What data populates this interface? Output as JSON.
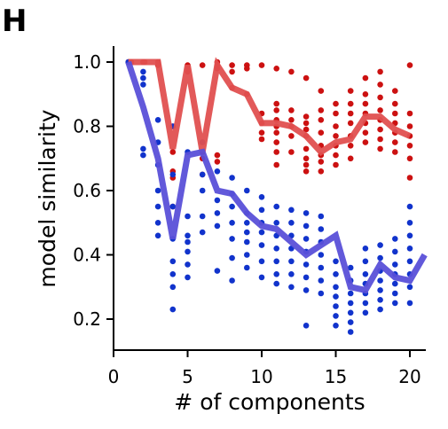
{
  "panel_label": "H",
  "chart_data": {
    "type": "scatter",
    "title": "",
    "xlabel": "# of components",
    "ylabel": "model similarity",
    "xlim": [
      0,
      21
    ],
    "ylim": [
      0.1,
      1.05
    ],
    "xticks": [
      0,
      5,
      10,
      15,
      20
    ],
    "yticks": [
      0.2,
      0.4,
      0.6,
      0.8,
      1.0
    ],
    "ytick_labels": [
      "0.2",
      "0.4",
      "0.6",
      "0.8",
      "1.0"
    ],
    "grid": false,
    "legend": "none",
    "series": [
      {
        "color": "#cc1111",
        "line_color": "#e05050",
        "mean_line": [
          [
            1,
            1.0
          ],
          [
            2,
            1.0
          ],
          [
            3,
            1.0
          ],
          [
            4,
            0.73
          ],
          [
            5,
            0.99
          ],
          [
            6,
            0.72
          ],
          [
            7,
            0.99
          ],
          [
            8,
            0.92
          ],
          [
            9,
            0.9
          ],
          [
            10,
            0.81
          ],
          [
            11,
            0.81
          ],
          [
            12,
            0.8
          ],
          [
            13,
            0.77
          ],
          [
            14,
            0.72
          ],
          [
            15,
            0.75
          ],
          [
            16,
            0.76
          ],
          [
            17,
            0.83
          ],
          [
            18,
            0.83
          ],
          [
            19,
            0.79
          ],
          [
            20,
            0.77
          ]
        ],
        "points": [
          [
            1,
            1.0
          ],
          [
            1.2,
            1.0
          ],
          [
            2,
            1.0
          ],
          [
            2.1,
            1.0
          ],
          [
            3,
            1.0
          ],
          [
            3,
            0.99
          ],
          [
            4,
            0.8
          ],
          [
            4,
            0.72
          ],
          [
            4,
            0.66
          ],
          [
            4,
            0.64
          ],
          [
            4,
            0.55
          ],
          [
            5,
            0.99
          ],
          [
            5,
            0.98
          ],
          [
            5,
            0.97
          ],
          [
            6,
            0.99
          ],
          [
            6,
            0.75
          ],
          [
            6,
            0.72
          ],
          [
            6,
            0.7
          ],
          [
            6,
            0.65
          ],
          [
            7,
            1.0
          ],
          [
            7,
            0.99
          ],
          [
            7,
            0.98
          ],
          [
            7,
            0.71
          ],
          [
            7,
            0.69
          ],
          [
            8,
            0.99
          ],
          [
            8,
            0.97
          ],
          [
            8,
            0.92
          ],
          [
            9,
            0.99
          ],
          [
            9,
            0.98
          ],
          [
            9,
            0.9
          ],
          [
            10,
            0.99
          ],
          [
            10,
            0.84
          ],
          [
            10,
            0.81
          ],
          [
            10,
            0.78
          ],
          [
            10,
            0.76
          ],
          [
            11,
            0.98
          ],
          [
            11,
            0.87
          ],
          [
            11,
            0.85
          ],
          [
            11,
            0.82
          ],
          [
            11,
            0.8
          ],
          [
            11,
            0.78
          ],
          [
            11,
            0.75
          ],
          [
            11,
            0.72
          ],
          [
            11,
            0.68
          ],
          [
            12,
            0.97
          ],
          [
            12,
            0.85
          ],
          [
            12,
            0.82
          ],
          [
            12,
            0.8
          ],
          [
            12,
            0.77
          ],
          [
            12,
            0.72
          ],
          [
            13,
            0.95
          ],
          [
            13,
            0.83
          ],
          [
            13,
            0.81
          ],
          [
            13,
            0.79
          ],
          [
            13,
            0.77
          ],
          [
            13,
            0.73
          ],
          [
            13,
            0.7
          ],
          [
            13,
            0.68
          ],
          [
            13,
            0.66
          ],
          [
            14,
            0.91
          ],
          [
            14,
            0.85
          ],
          [
            14,
            0.82
          ],
          [
            14,
            0.78
          ],
          [
            14,
            0.74
          ],
          [
            14,
            0.71
          ],
          [
            14,
            0.69
          ],
          [
            14,
            0.66
          ],
          [
            15,
            0.87
          ],
          [
            15,
            0.84
          ],
          [
            15,
            0.8
          ],
          [
            15,
            0.77
          ],
          [
            15,
            0.74
          ],
          [
            15,
            0.71
          ],
          [
            15,
            0.68
          ],
          [
            16,
            0.91
          ],
          [
            16,
            0.87
          ],
          [
            16,
            0.84
          ],
          [
            16,
            0.81
          ],
          [
            16,
            0.77
          ],
          [
            16,
            0.74
          ],
          [
            16,
            0.7
          ],
          [
            17,
            0.95
          ],
          [
            17,
            0.9
          ],
          [
            17,
            0.87
          ],
          [
            17,
            0.84
          ],
          [
            17,
            0.81
          ],
          [
            17,
            0.78
          ],
          [
            17,
            0.75
          ],
          [
            18,
            0.97
          ],
          [
            18,
            0.93
          ],
          [
            18,
            0.89
          ],
          [
            18,
            0.85
          ],
          [
            18,
            0.82
          ],
          [
            18,
            0.79
          ],
          [
            18,
            0.76
          ],
          [
            18,
            0.73
          ],
          [
            19,
            0.91
          ],
          [
            19,
            0.87
          ],
          [
            19,
            0.84
          ],
          [
            19,
            0.81
          ],
          [
            19,
            0.78
          ],
          [
            19,
            0.75
          ],
          [
            19,
            0.72
          ],
          [
            20,
            0.99
          ],
          [
            20,
            0.84
          ],
          [
            20,
            0.8
          ],
          [
            20,
            0.77
          ],
          [
            20,
            0.74
          ],
          [
            20,
            0.7
          ],
          [
            20,
            0.64
          ]
        ]
      },
      {
        "color": "#1133cc",
        "line_color": "#5a50d8",
        "mean_line": [
          [
            1,
            1.0
          ],
          [
            2,
            0.86
          ],
          [
            3,
            0.7
          ],
          [
            4,
            0.45
          ],
          [
            5,
            0.71
          ],
          [
            6,
            0.72
          ],
          [
            7,
            0.6
          ],
          [
            8,
            0.59
          ],
          [
            9,
            0.53
          ],
          [
            10,
            0.49
          ],
          [
            11,
            0.48
          ],
          [
            12,
            0.44
          ],
          [
            13,
            0.4
          ],
          [
            14,
            0.43
          ],
          [
            15,
            0.46
          ],
          [
            16,
            0.3
          ],
          [
            17,
            0.29
          ],
          [
            18,
            0.37
          ],
          [
            19,
            0.33
          ],
          [
            20,
            0.32
          ],
          [
            21,
            0.4
          ]
        ],
        "points": [
          [
            1,
            1.0
          ],
          [
            2,
            0.97
          ],
          [
            2,
            0.95
          ],
          [
            2,
            0.93
          ],
          [
            2,
            0.73
          ],
          [
            2,
            0.71
          ],
          [
            3,
            0.82
          ],
          [
            3,
            0.75
          ],
          [
            3,
            0.68
          ],
          [
            3,
            0.6
          ],
          [
            3,
            0.55
          ],
          [
            3,
            0.5
          ],
          [
            3,
            0.46
          ],
          [
            4,
            0.8
          ],
          [
            4,
            0.65
          ],
          [
            4,
            0.55
          ],
          [
            4,
            0.45
          ],
          [
            4,
            0.38
          ],
          [
            4,
            0.34
          ],
          [
            4,
            0.3
          ],
          [
            4,
            0.23
          ],
          [
            5,
            0.72
          ],
          [
            5,
            0.52
          ],
          [
            5,
            0.46
          ],
          [
            5,
            0.44
          ],
          [
            5,
            0.41
          ],
          [
            5,
            0.37
          ],
          [
            5,
            0.33
          ],
          [
            6,
            0.75
          ],
          [
            6,
            0.65
          ],
          [
            6,
            0.6
          ],
          [
            6,
            0.52
          ],
          [
            6,
            0.47
          ],
          [
            7,
            0.66
          ],
          [
            7,
            0.57
          ],
          [
            7,
            0.53
          ],
          [
            7,
            0.49
          ],
          [
            7,
            0.35
          ],
          [
            8,
            0.64
          ],
          [
            8,
            0.59
          ],
          [
            8,
            0.55
          ],
          [
            8,
            0.5
          ],
          [
            8,
            0.45
          ],
          [
            8,
            0.39
          ],
          [
            8,
            0.32
          ],
          [
            9,
            0.6
          ],
          [
            9,
            0.53
          ],
          [
            9,
            0.5
          ],
          [
            9,
            0.47
          ],
          [
            9,
            0.44
          ],
          [
            9,
            0.4
          ],
          [
            9,
            0.36
          ],
          [
            10,
            0.58
          ],
          [
            10,
            0.54
          ],
          [
            10,
            0.5
          ],
          [
            10,
            0.47
          ],
          [
            10,
            0.43
          ],
          [
            10,
            0.38
          ],
          [
            10,
            0.33
          ],
          [
            11,
            0.55
          ],
          [
            11,
            0.5
          ],
          [
            11,
            0.46
          ],
          [
            11,
            0.42
          ],
          [
            11,
            0.38
          ],
          [
            11,
            0.34
          ],
          [
            11,
            0.31
          ],
          [
            12,
            0.54
          ],
          [
            12,
            0.5
          ],
          [
            12,
            0.46
          ],
          [
            12,
            0.42
          ],
          [
            12,
            0.38
          ],
          [
            12,
            0.34
          ],
          [
            12,
            0.3
          ],
          [
            13,
            0.53
          ],
          [
            13,
            0.49
          ],
          [
            13,
            0.45
          ],
          [
            13,
            0.41
          ],
          [
            13,
            0.37
          ],
          [
            13,
            0.33
          ],
          [
            13,
            0.29
          ],
          [
            13,
            0.18
          ],
          [
            14,
            0.52
          ],
          [
            14,
            0.48
          ],
          [
            14,
            0.44
          ],
          [
            14,
            0.4
          ],
          [
            14,
            0.36
          ],
          [
            14,
            0.32
          ],
          [
            14,
            0.28
          ],
          [
            15,
            0.38
          ],
          [
            15,
            0.34
          ],
          [
            15,
            0.3
          ],
          [
            15,
            0.27
          ],
          [
            15,
            0.24
          ],
          [
            15,
            0.21
          ],
          [
            15,
            0.18
          ],
          [
            16,
            0.36
          ],
          [
            16,
            0.32
          ],
          [
            16,
            0.28
          ],
          [
            16,
            0.25
          ],
          [
            16,
            0.22
          ],
          [
            16,
            0.19
          ],
          [
            16,
            0.16
          ],
          [
            17,
            0.42
          ],
          [
            17,
            0.38
          ],
          [
            17,
            0.34
          ],
          [
            17,
            0.31
          ],
          [
            17,
            0.28
          ],
          [
            17,
            0.25
          ],
          [
            17,
            0.22
          ],
          [
            18,
            0.43
          ],
          [
            18,
            0.39
          ],
          [
            18,
            0.35
          ],
          [
            18,
            0.32
          ],
          [
            18,
            0.29
          ],
          [
            18,
            0.26
          ],
          [
            18,
            0.23
          ],
          [
            19,
            0.45
          ],
          [
            19,
            0.41
          ],
          [
            19,
            0.37
          ],
          [
            19,
            0.34
          ],
          [
            19,
            0.31
          ],
          [
            19,
            0.28
          ],
          [
            19,
            0.25
          ],
          [
            20,
            0.55
          ],
          [
            20,
            0.5
          ],
          [
            20,
            0.46
          ],
          [
            20,
            0.42
          ],
          [
            20,
            0.38
          ],
          [
            20,
            0.34
          ],
          [
            20,
            0.3
          ],
          [
            20,
            0.25
          ]
        ]
      }
    ]
  }
}
